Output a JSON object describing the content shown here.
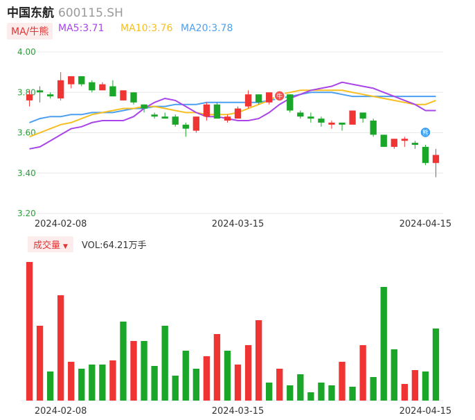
{
  "header": {
    "name": "中国东航",
    "code": "600115.SH"
  },
  "legend": {
    "indicator": "MA/牛熊",
    "ma5": "MA5:3.71",
    "ma10": "MA10:3.76",
    "ma20": "MA20:3.78"
  },
  "volume_header": {
    "label": "成交量",
    "value": "VOL:64.21万手"
  },
  "colors": {
    "up": "#f03434",
    "down": "#1aa628",
    "ma5": "#a844e8",
    "ma10": "#f6be1e",
    "ma20": "#4b9ff0",
    "grid": "#e8e8e8",
    "axis_text": "#2c9e3a"
  },
  "chart_data": [
    {
      "type": "candlestick",
      "y_ticks": [
        "4.00",
        "3.80",
        "3.60",
        "3.40",
        "3.20"
      ],
      "ylim": [
        3.2,
        4.0
      ],
      "x_tick_labels": [
        {
          "label": "2024-02-08",
          "index": 3
        },
        {
          "label": "2024-03-15",
          "index": 20
        },
        {
          "label": "2024-04-15",
          "index": 38
        }
      ],
      "candles": [
        {
          "o": 3.76,
          "c": 3.79,
          "h": 3.81,
          "l": 3.73
        },
        {
          "o": 3.81,
          "c": 3.8,
          "h": 3.83,
          "l": 3.75
        },
        {
          "o": 3.79,
          "c": 3.78,
          "h": 3.8,
          "l": 3.77
        },
        {
          "o": 3.77,
          "c": 3.86,
          "h": 3.9,
          "l": 3.76
        },
        {
          "o": 3.84,
          "c": 3.88,
          "h": 3.88,
          "l": 3.82
        },
        {
          "o": 3.88,
          "c": 3.84,
          "h": 3.88,
          "l": 3.83
        },
        {
          "o": 3.85,
          "c": 3.81,
          "h": 3.86,
          "l": 3.8
        },
        {
          "o": 3.81,
          "c": 3.84,
          "h": 3.85,
          "l": 3.81
        },
        {
          "o": 3.83,
          "c": 3.78,
          "h": 3.86,
          "l": 3.78
        },
        {
          "o": 3.76,
          "c": 3.81,
          "h": 3.81,
          "l": 3.76
        },
        {
          "o": 3.8,
          "c": 3.75,
          "h": 3.8,
          "l": 3.74
        },
        {
          "o": 3.74,
          "c": 3.72,
          "h": 3.74,
          "l": 3.7
        },
        {
          "o": 3.69,
          "c": 3.68,
          "h": 3.7,
          "l": 3.67
        },
        {
          "o": 3.68,
          "c": 3.67,
          "h": 3.7,
          "l": 3.67
        },
        {
          "o": 3.68,
          "c": 3.64,
          "h": 3.69,
          "l": 3.63
        },
        {
          "o": 3.64,
          "c": 3.62,
          "h": 3.65,
          "l": 3.58
        },
        {
          "o": 3.61,
          "c": 3.68,
          "h": 3.68,
          "l": 3.6
        },
        {
          "o": 3.68,
          "c": 3.74,
          "h": 3.75,
          "l": 3.66
        },
        {
          "o": 3.74,
          "c": 3.67,
          "h": 3.75,
          "l": 3.67
        },
        {
          "o": 3.66,
          "c": 3.68,
          "h": 3.69,
          "l": 3.65
        },
        {
          "o": 3.67,
          "c": 3.72,
          "h": 3.73,
          "l": 3.67
        },
        {
          "o": 3.73,
          "c": 3.79,
          "h": 3.81,
          "l": 3.72
        },
        {
          "o": 3.79,
          "c": 3.75,
          "h": 3.79,
          "l": 3.74
        },
        {
          "o": 3.75,
          "c": 3.8,
          "h": 3.8,
          "l": 3.74
        },
        {
          "o": 3.8,
          "c": 3.79,
          "h": 3.81,
          "l": 3.78
        },
        {
          "o": 3.79,
          "c": 3.71,
          "h": 3.79,
          "l": 3.7
        },
        {
          "o": 3.7,
          "c": 3.68,
          "h": 3.71,
          "l": 3.67
        },
        {
          "o": 3.68,
          "c": 3.67,
          "h": 3.7,
          "l": 3.65
        },
        {
          "o": 3.67,
          "c": 3.65,
          "h": 3.68,
          "l": 3.63
        },
        {
          "o": 3.64,
          "c": 3.65,
          "h": 3.66,
          "l": 3.62
        },
        {
          "o": 3.65,
          "c": 3.64,
          "h": 3.65,
          "l": 3.61
        },
        {
          "o": 3.64,
          "c": 3.71,
          "h": 3.71,
          "l": 3.64
        },
        {
          "o": 3.7,
          "c": 3.67,
          "h": 3.7,
          "l": 3.65
        },
        {
          "o": 3.66,
          "c": 3.59,
          "h": 3.67,
          "l": 3.58
        },
        {
          "o": 3.59,
          "c": 3.53,
          "h": 3.59,
          "l": 3.53
        },
        {
          "o": 3.53,
          "c": 3.57,
          "h": 3.57,
          "l": 3.52
        },
        {
          "o": 3.56,
          "c": 3.57,
          "h": 3.58,
          "l": 3.53
        },
        {
          "o": 3.55,
          "c": 3.54,
          "h": 3.56,
          "l": 3.52
        },
        {
          "o": 3.53,
          "c": 3.45,
          "h": 3.54,
          "l": 3.44
        },
        {
          "o": 3.45,
          "c": 3.49,
          "h": 3.52,
          "l": 3.38
        }
      ],
      "ma5": [
        3.52,
        3.53,
        3.56,
        3.59,
        3.62,
        3.63,
        3.65,
        3.66,
        3.66,
        3.66,
        3.68,
        3.72,
        3.75,
        3.77,
        3.76,
        3.73,
        3.7,
        3.68,
        3.68,
        3.67,
        3.66,
        3.66,
        3.67,
        3.7,
        3.74,
        3.77,
        3.79,
        3.81,
        3.82,
        3.83,
        3.85,
        3.84,
        3.83,
        3.82,
        3.8,
        3.78,
        3.76,
        3.74,
        3.71,
        3.71
      ],
      "ma10": [
        3.58,
        3.6,
        3.62,
        3.64,
        3.65,
        3.67,
        3.69,
        3.7,
        3.71,
        3.72,
        3.72,
        3.73,
        3.73,
        3.72,
        3.71,
        3.7,
        3.7,
        3.69,
        3.69,
        3.69,
        3.7,
        3.72,
        3.74,
        3.76,
        3.79,
        3.8,
        3.81,
        3.81,
        3.81,
        3.81,
        3.81,
        3.8,
        3.79,
        3.78,
        3.77,
        3.76,
        3.75,
        3.74,
        3.74,
        3.76
      ],
      "ma20": [
        3.65,
        3.67,
        3.68,
        3.68,
        3.69,
        3.69,
        3.7,
        3.7,
        3.7,
        3.71,
        3.72,
        3.72,
        3.73,
        3.73,
        3.74,
        3.74,
        3.74,
        3.75,
        3.75,
        3.75,
        3.75,
        3.75,
        3.75,
        3.76,
        3.77,
        3.78,
        3.79,
        3.8,
        3.8,
        3.8,
        3.79,
        3.78,
        3.78,
        3.78,
        3.78,
        3.78,
        3.78,
        3.78,
        3.78,
        3.78
      ],
      "markers": [
        {
          "label": "牛",
          "index": 24
        },
        {
          "label": "熊",
          "index": 38
        }
      ]
    },
    {
      "type": "bar",
      "title": "成交量",
      "value_label": "VOL:64.21万手",
      "volumes": [
        100,
        54,
        21,
        76,
        28,
        23,
        26,
        26,
        29,
        57,
        43,
        43,
        25,
        54,
        18,
        36,
        23,
        32,
        48,
        36,
        26,
        40,
        58,
        13,
        23,
        11,
        19,
        6,
        13,
        11,
        28,
        10,
        40,
        17,
        82,
        37,
        12,
        22,
        21,
        52
      ],
      "directions": [
        "up",
        "up",
        "down",
        "up",
        "up",
        "down",
        "down",
        "down",
        "up",
        "down",
        "up",
        "down",
        "down",
        "down",
        "down",
        "down",
        "down",
        "up",
        "up",
        "down",
        "up",
        "up",
        "up",
        "down",
        "up",
        "down",
        "down",
        "down",
        "down",
        "down",
        "up",
        "down",
        "up",
        "down",
        "down",
        "down",
        "up",
        "up",
        "down",
        "down"
      ]
    }
  ]
}
